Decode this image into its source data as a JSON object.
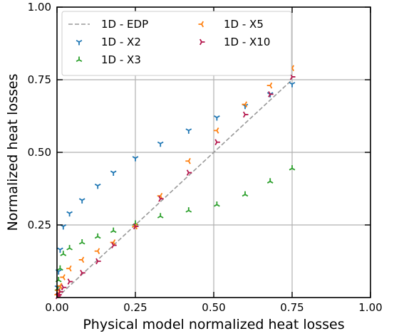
{
  "chart_data": {
    "type": "scatter",
    "xlabel": "Physical model normalized heat losses",
    "ylabel": "Normalized heat losses",
    "xlim": [
      0,
      1
    ],
    "ylim": [
      0,
      1
    ],
    "x_ticks": [
      "0.00",
      "0.25",
      "0.50",
      "0.75",
      "1.00"
    ],
    "y_ticks": [
      "0.25",
      "0.50",
      "0.75",
      "1.00"
    ],
    "grid": "on",
    "legend_position": "top-left",
    "reference_line": {
      "name": "1D - EDP",
      "x": [
        0,
        0.75
      ],
      "y": [
        0,
        0.75
      ],
      "color": "#999999"
    },
    "series": [
      {
        "name": "1D - X2",
        "color": "#1f77b4",
        "marker": "tri_down",
        "x": [
          0.002,
          0.005,
          0.01,
          0.02,
          0.04,
          0.08,
          0.13,
          0.18,
          0.25,
          0.33,
          0.42,
          0.51,
          0.6,
          0.68,
          0.75
        ],
        "y": [
          0.035,
          0.09,
          0.165,
          0.245,
          0.29,
          0.335,
          0.385,
          0.43,
          0.48,
          0.53,
          0.575,
          0.62,
          0.66,
          0.7,
          0.735
        ]
      },
      {
        "name": "1D - X3",
        "color": "#2ca02c",
        "marker": "tri_up",
        "x": [
          0.002,
          0.005,
          0.01,
          0.02,
          0.04,
          0.08,
          0.13,
          0.18,
          0.25,
          0.33,
          0.42,
          0.51,
          0.6,
          0.68,
          0.75
        ],
        "y": [
          0.03,
          0.06,
          0.1,
          0.15,
          0.17,
          0.19,
          0.21,
          0.23,
          0.255,
          0.28,
          0.3,
          0.32,
          0.355,
          0.4,
          0.445
        ]
      },
      {
        "name": "1D - X5",
        "color": "#ff7f0e",
        "marker": "tri_left",
        "x": [
          0.002,
          0.005,
          0.01,
          0.02,
          0.04,
          0.08,
          0.13,
          0.18,
          0.25,
          0.33,
          0.42,
          0.51,
          0.6,
          0.68,
          0.75
        ],
        "y": [
          0.01,
          0.025,
          0.04,
          0.07,
          0.1,
          0.13,
          0.16,
          0.19,
          0.245,
          0.35,
          0.47,
          0.575,
          0.665,
          0.73,
          0.79
        ]
      },
      {
        "name": "1D - X10",
        "color": "#b5174d",
        "marker": "tri_right",
        "x": [
          0.002,
          0.005,
          0.01,
          0.02,
          0.04,
          0.08,
          0.13,
          0.18,
          0.25,
          0.33,
          0.42,
          0.51,
          0.6,
          0.68,
          0.75
        ],
        "y": [
          0.005,
          0.01,
          0.02,
          0.035,
          0.055,
          0.085,
          0.125,
          0.18,
          0.245,
          0.34,
          0.43,
          0.535,
          0.63,
          0.7,
          0.76
        ]
      }
    ]
  }
}
